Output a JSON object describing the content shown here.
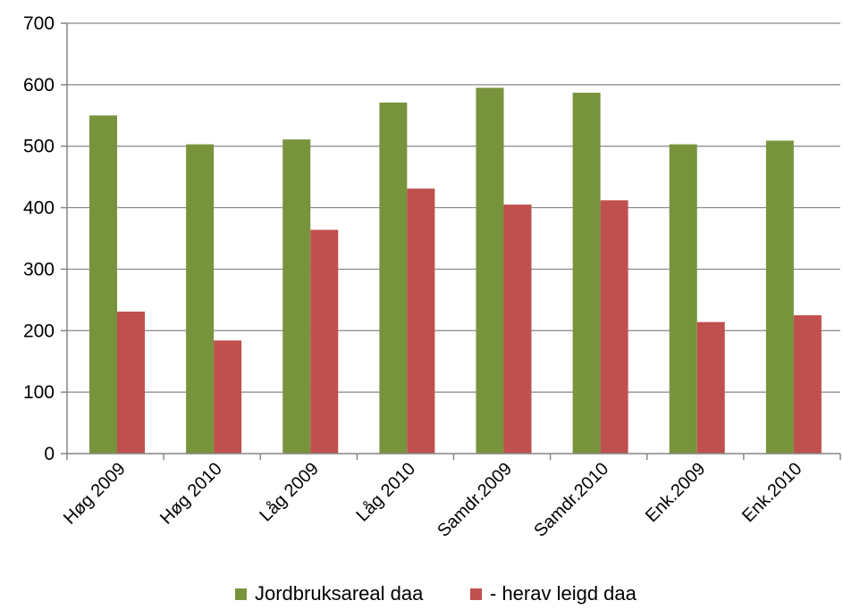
{
  "chart_data": {
    "type": "bar",
    "categories": [
      "Høg 2009",
      "Høg 2010",
      "Låg 2009",
      "Låg 2010",
      "Samdr.2009",
      "Samdr.2010",
      "Enk.2009",
      "Enk.2010"
    ],
    "series": [
      {
        "name": "Jordbruksareal daa",
        "color": "#77933c",
        "values": [
          550,
          503,
          511,
          571,
          595,
          587,
          503,
          509
        ]
      },
      {
        "name": "- herav leigd daa",
        "color": "#c0504d",
        "values": [
          231,
          184,
          364,
          431,
          405,
          412,
          214,
          225
        ]
      }
    ],
    "ylim": [
      0,
      700
    ],
    "yticks": [
      0,
      100,
      200,
      300,
      400,
      500,
      600,
      700
    ],
    "grid": true,
    "legend_position": "bottom"
  }
}
